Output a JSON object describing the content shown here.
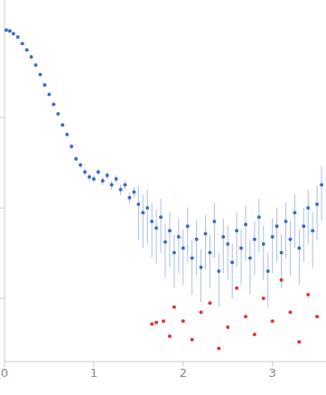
{
  "chart_data": {
    "type": "scatter",
    "log": "y",
    "tick_labels": "x",
    "xlim": [
      0,
      3.6
    ],
    "xticks": [
      0,
      1,
      2,
      3
    ],
    "ylim": [
      0.0002,
      2
    ],
    "yticks": [
      0.001,
      0.01,
      0.1
    ],
    "series": [
      {
        "color": "#3a6bc4",
        "marker": "circle",
        "x": [
          0.02,
          0.06,
          0.1,
          0.15,
          0.2,
          0.25,
          0.3,
          0.35,
          0.4,
          0.45,
          0.5,
          0.55,
          0.6,
          0.65,
          0.7,
          0.75,
          0.8,
          0.85,
          0.9,
          0.95,
          1.0,
          1.05,
          1.1,
          1.15,
          1.2,
          1.25,
          1.3,
          1.35,
          1.4,
          1.45,
          1.5,
          1.55,
          1.6,
          1.65,
          1.7,
          1.75,
          1.8,
          1.85,
          1.9,
          1.95,
          2.0,
          2.05,
          2.1,
          2.15,
          2.2,
          2.25,
          2.3,
          2.35,
          2.4,
          2.45,
          2.5,
          2.55,
          2.6,
          2.65,
          2.7,
          2.75,
          2.8,
          2.85,
          2.9,
          2.95,
          3.0,
          3.05,
          3.1,
          3.15,
          3.2,
          3.25,
          3.3,
          3.35,
          3.4,
          3.45,
          3.5,
          3.55
        ],
        "values": [
          0.93,
          0.91,
          0.85,
          0.78,
          0.66,
          0.56,
          0.47,
          0.38,
          0.3,
          0.23,
          0.18,
          0.14,
          0.11,
          0.083,
          0.065,
          0.048,
          0.035,
          0.03,
          0.025,
          0.022,
          0.021,
          0.025,
          0.02,
          0.023,
          0.018,
          0.021,
          0.016,
          0.018,
          0.013,
          0.015,
          0.011,
          0.0089,
          0.01,
          0.0071,
          0.006,
          0.0079,
          0.0042,
          0.0056,
          0.0032,
          0.0048,
          0.0036,
          0.0063,
          0.0028,
          0.0045,
          0.0022,
          0.0052,
          0.0032,
          0.0071,
          0.002,
          0.0048,
          0.004,
          0.0025,
          0.0056,
          0.0036,
          0.0066,
          0.0028,
          0.0045,
          0.0079,
          0.004,
          0.002,
          0.0048,
          0.0063,
          0.0032,
          0.0071,
          0.0045,
          0.0089,
          0.0036,
          0.0063,
          0.01,
          0.0056,
          0.011,
          0.018
        ],
        "errors": [
          0.003,
          0.003,
          0.003,
          0.003,
          0.003,
          0.003,
          0.003,
          0.003,
          0.003,
          0.003,
          0.003,
          0.003,
          0.003,
          0.003,
          0.003,
          0.003,
          0.002,
          0.002,
          0.002,
          0.002,
          0.002,
          0.002,
          0.002,
          0.002,
          0.002,
          0.002,
          0.002,
          0.002,
          0.002,
          0.002,
          0.0066,
          0.0053,
          0.006,
          0.0043,
          0.0036,
          0.0047,
          0.0025,
          0.0034,
          0.0019,
          0.0029,
          0.0022,
          0.0038,
          0.0017,
          0.0027,
          0.0013,
          0.0031,
          0.0019,
          0.0043,
          0.0012,
          0.0029,
          0.0024,
          0.0015,
          0.0034,
          0.0022,
          0.004,
          0.0017,
          0.0027,
          0.0047,
          0.0024,
          0.0012,
          0.0029,
          0.0038,
          0.0019,
          0.0043,
          0.0027,
          0.0053,
          0.0022,
          0.0038,
          0.006,
          0.0034,
          0.0066,
          0.0108
        ]
      },
      {
        "color": "#e0303a",
        "marker": "circle",
        "x": [
          1.65,
          1.7,
          1.78,
          1.85,
          1.9,
          2.0,
          2.1,
          2.2,
          2.3,
          2.4,
          2.5,
          2.6,
          2.7,
          2.8,
          2.9,
          3.0,
          3.1,
          3.2,
          3.3,
          3.4,
          3.5
        ],
        "values": [
          0.00052,
          0.00054,
          0.00056,
          0.00038,
          0.0008,
          0.00056,
          0.00035,
          0.0007,
          0.00089,
          0.00028,
          0.00048,
          0.0013,
          0.00063,
          0.0004,
          0.001,
          0.00056,
          0.0016,
          0.0007,
          0.00033,
          0.0011,
          0.00063
        ]
      }
    ]
  }
}
